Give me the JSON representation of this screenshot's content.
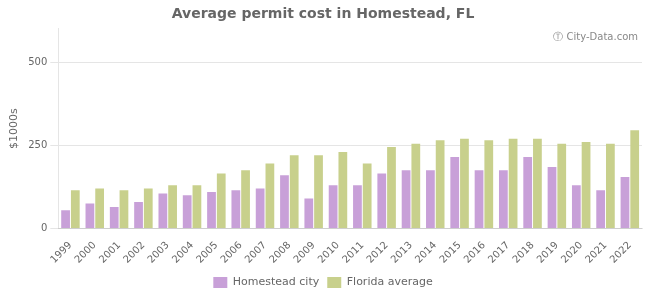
{
  "chart_data": {
    "type": "bar",
    "title": "Average permit cost in Homestead, FL",
    "ylabel": "$1000s",
    "categories": [
      "1999",
      "2000",
      "2001",
      "2002",
      "2003",
      "2004",
      "2005",
      "2006",
      "2007",
      "2008",
      "2009",
      "2010",
      "2011",
      "2012",
      "2013",
      "2014",
      "2015",
      "2016",
      "2017",
      "2018",
      "2019",
      "2020",
      "2021",
      "2022"
    ],
    "series": [
      {
        "name": "Homestead city",
        "color": "#c8a0d8",
        "values": [
          55,
          75,
          65,
          80,
          105,
          100,
          110,
          115,
          120,
          160,
          90,
          130,
          130,
          165,
          175,
          175,
          215,
          175,
          175,
          215,
          185,
          130,
          115,
          155
        ]
      },
      {
        "name": "Florida average",
        "color": "#c8d08c",
        "values": [
          115,
          120,
          115,
          120,
          130,
          130,
          165,
          175,
          195,
          220,
          220,
          230,
          195,
          245,
          255,
          265,
          270,
          265,
          270,
          270,
          255,
          260,
          255,
          295
        ]
      }
    ],
    "ylim": [
      0,
      600
    ],
    "yticks": [
      0,
      250,
      500
    ],
    "grid": true,
    "legend": "bottom",
    "annotations": [
      "Ⓣ City-Data.com"
    ]
  }
}
